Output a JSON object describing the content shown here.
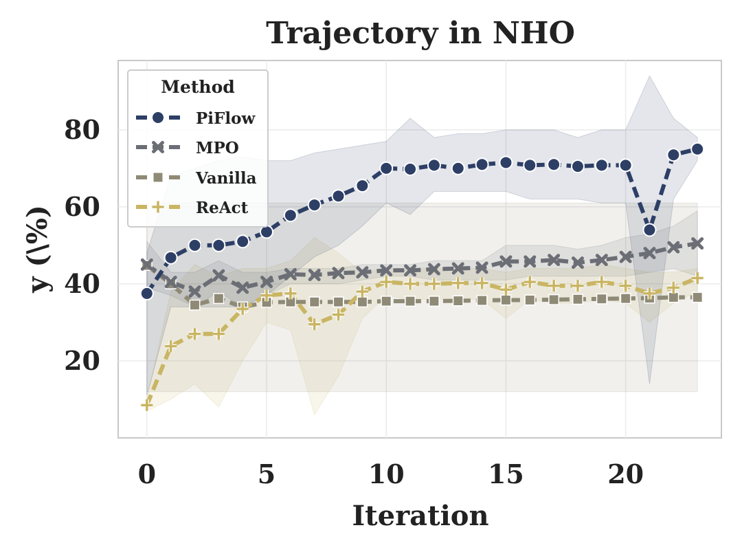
{
  "chart_data": {
    "type": "line",
    "title": "Trajectory in NHO",
    "xlabel": "Iteration",
    "ylabel": "y (\\%)",
    "xlim": [
      -1.2,
      24.0
    ],
    "ylim": [
      0,
      98
    ],
    "xticks": [
      0,
      5,
      10,
      15,
      20
    ],
    "yticks": [
      20,
      40,
      60,
      80
    ],
    "grid": true,
    "legend": {
      "title": "Method",
      "position": "top-left"
    },
    "x": [
      0,
      1,
      2,
      3,
      4,
      5,
      6,
      7,
      8,
      9,
      10,
      11,
      12,
      13,
      14,
      15,
      16,
      17,
      18,
      19,
      20,
      21,
      22,
      23
    ],
    "series": [
      {
        "name": "PiFlow",
        "color": "#2e3f66",
        "marker": "circle",
        "values": [
          37.5,
          46.8,
          50,
          50,
          51,
          53.5,
          57.8,
          60.5,
          62.8,
          65.5,
          70,
          69.8,
          70.8,
          70,
          71,
          71.5,
          70.8,
          71,
          70.5,
          70.8,
          70.8,
          54,
          73.5,
          75
        ],
        "band_upper": [
          48,
          68,
          70,
          72,
          73,
          72,
          72,
          74,
          75,
          76,
          77,
          83,
          78,
          79,
          79,
          80,
          80,
          80,
          78,
          80,
          80,
          94,
          83,
          78
        ],
        "band_lower": [
          11,
          34,
          34,
          34,
          34,
          37,
          42,
          47,
          50,
          55,
          61,
          58,
          64,
          64,
          64,
          64,
          62,
          62,
          62,
          61,
          61,
          14,
          62,
          72
        ]
      },
      {
        "name": "MPO",
        "color": "#6c6e76",
        "marker": "x",
        "values": [
          45,
          40.5,
          38,
          42.2,
          39,
          40.5,
          42.5,
          42.3,
          42.8,
          43,
          43.5,
          43.5,
          43.8,
          44,
          44.2,
          45.8,
          45.8,
          46.2,
          45.5,
          46.2,
          47,
          48,
          49.5,
          50.5
        ],
        "band_upper": [
          51,
          43,
          43,
          46,
          43,
          43,
          44,
          44,
          44,
          45,
          45,
          45,
          46,
          46,
          46,
          50,
          50,
          50,
          49,
          50,
          52,
          53,
          55,
          59
        ],
        "band_lower": [
          39,
          37,
          34,
          38,
          34,
          37,
          40,
          40,
          40,
          41,
          42,
          42,
          41,
          41,
          41,
          41,
          42,
          42,
          42,
          42,
          42,
          43,
          44,
          42
        ]
      },
      {
        "name": "Vanilla",
        "color": "#8f8a76",
        "marker": "square",
        "values": [
          44.8,
          40,
          34.5,
          36.2,
          34,
          35.2,
          35.3,
          35.3,
          35.3,
          35.3,
          35.5,
          35.5,
          35.5,
          35.6,
          35.7,
          35.8,
          35.8,
          35.9,
          36,
          36.1,
          36.2,
          36.3,
          36.5,
          36.5
        ],
        "band_upper": [
          61,
          61,
          61,
          61,
          61,
          61,
          61,
          61,
          61,
          61,
          61,
          61,
          61,
          61,
          61,
          61,
          61,
          61,
          61,
          61,
          61,
          61,
          61,
          61
        ],
        "band_lower": [
          12,
          12,
          12,
          12,
          12,
          12,
          12,
          12,
          12,
          12,
          12,
          12,
          12,
          12,
          12,
          12,
          12,
          12,
          12,
          12,
          12,
          12,
          12,
          12
        ]
      },
      {
        "name": "ReAct",
        "color": "#c9b563",
        "marker": "plus",
        "values": [
          8.5,
          23.8,
          27,
          27,
          33.5,
          37,
          37.5,
          29.5,
          32,
          38,
          40.5,
          40,
          40,
          40.2,
          40.2,
          38.5,
          40.5,
          39.5,
          39.5,
          40.5,
          39.5,
          37.5,
          39,
          41.5
        ],
        "band_upper": [
          10,
          38,
          45,
          42,
          44,
          44,
          46,
          52,
          48,
          43,
          44,
          44,
          44,
          44,
          44,
          43,
          44,
          44,
          44,
          45,
          44,
          43,
          43,
          44
        ],
        "band_lower": [
          7,
          10,
          14,
          8,
          20,
          30,
          28,
          6,
          16,
          31,
          37,
          36,
          36,
          36,
          36,
          31,
          36,
          35,
          35,
          36,
          35,
          30,
          35,
          38
        ]
      }
    ]
  }
}
